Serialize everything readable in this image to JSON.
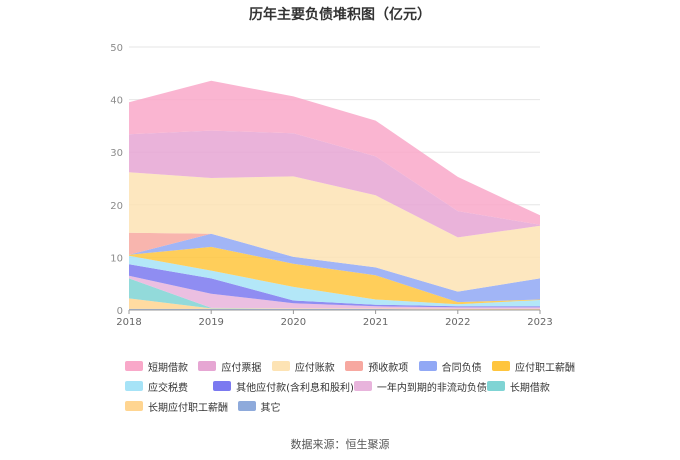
{
  "chart_data": {
    "type": "area",
    "stacked": true,
    "title": "历年主要负债堆积图（亿元）",
    "x": [
      "2018",
      "2019",
      "2020",
      "2021",
      "2022",
      "2023"
    ],
    "ylim": [
      0,
      50
    ],
    "yticks": [
      0,
      10,
      20,
      30,
      40,
      50
    ],
    "grid": true,
    "legend_position": "bottom",
    "series": [
      {
        "name": "其它",
        "color": "#8eaadb",
        "values": [
          0.2,
          0.2,
          0.2,
          0.2,
          0.1,
          0.1
        ]
      },
      {
        "name": "长期应付职工薪酬",
        "color": "#ffd591",
        "values": [
          2.0,
          0.1,
          0.1,
          0.1,
          0.1,
          0.1
        ]
      },
      {
        "name": "长期借款",
        "color": "#7fd4d4",
        "values": [
          3.8,
          0.1,
          0.0,
          0.0,
          0.0,
          0.0
        ]
      },
      {
        "name": "一年内到期的非流动负债",
        "color": "#e8b4dc",
        "values": [
          0.5,
          2.7,
          1.0,
          0.4,
          0.3,
          0.3
        ]
      },
      {
        "name": "其他应付款(含利息和股利)",
        "color": "#7b79f0",
        "values": [
          2.2,
          2.9,
          0.5,
          0.3,
          0.2,
          0.2
        ]
      },
      {
        "name": "应交税费",
        "color": "#a6e3f7",
        "values": [
          1.6,
          1.5,
          2.6,
          1.0,
          0.4,
          1.2
        ]
      },
      {
        "name": "应付职工薪酬",
        "color": "#ffc53d",
        "values": [
          0.2,
          4.5,
          4.4,
          4.6,
          0.4,
          0.1
        ]
      },
      {
        "name": "合同负债",
        "color": "#91a8f5",
        "values": [
          0.0,
          2.5,
          1.3,
          1.5,
          2.0,
          4.0
        ]
      },
      {
        "name": "预收款项",
        "color": "#f7a8a0",
        "values": [
          4.2,
          0.0,
          0.0,
          0.0,
          0.0,
          0.0
        ]
      },
      {
        "name": "应付账款",
        "color": "#fde3b4",
        "values": [
          11.5,
          10.6,
          15.3,
          13.7,
          10.3,
          10.0
        ]
      },
      {
        "name": "应付票据",
        "color": "#e6a6d3",
        "values": [
          7.2,
          9.0,
          8.2,
          7.4,
          5.0,
          0.2
        ]
      },
      {
        "name": "短期借款",
        "color": "#f9a8c9",
        "values": [
          6.1,
          9.5,
          7.0,
          6.8,
          6.5,
          1.8
        ]
      }
    ],
    "legend_order": [
      "短期借款",
      "应付票据",
      "应付账款",
      "预收款项",
      "合同负债",
      "应付职工薪酬",
      "应交税费",
      "其他应付款(含利息和股利)",
      "一年内到期的非流动负债",
      "长期借款",
      "长期应付职工薪酬",
      "其它"
    ]
  },
  "source": "数据来源：恒生聚源"
}
